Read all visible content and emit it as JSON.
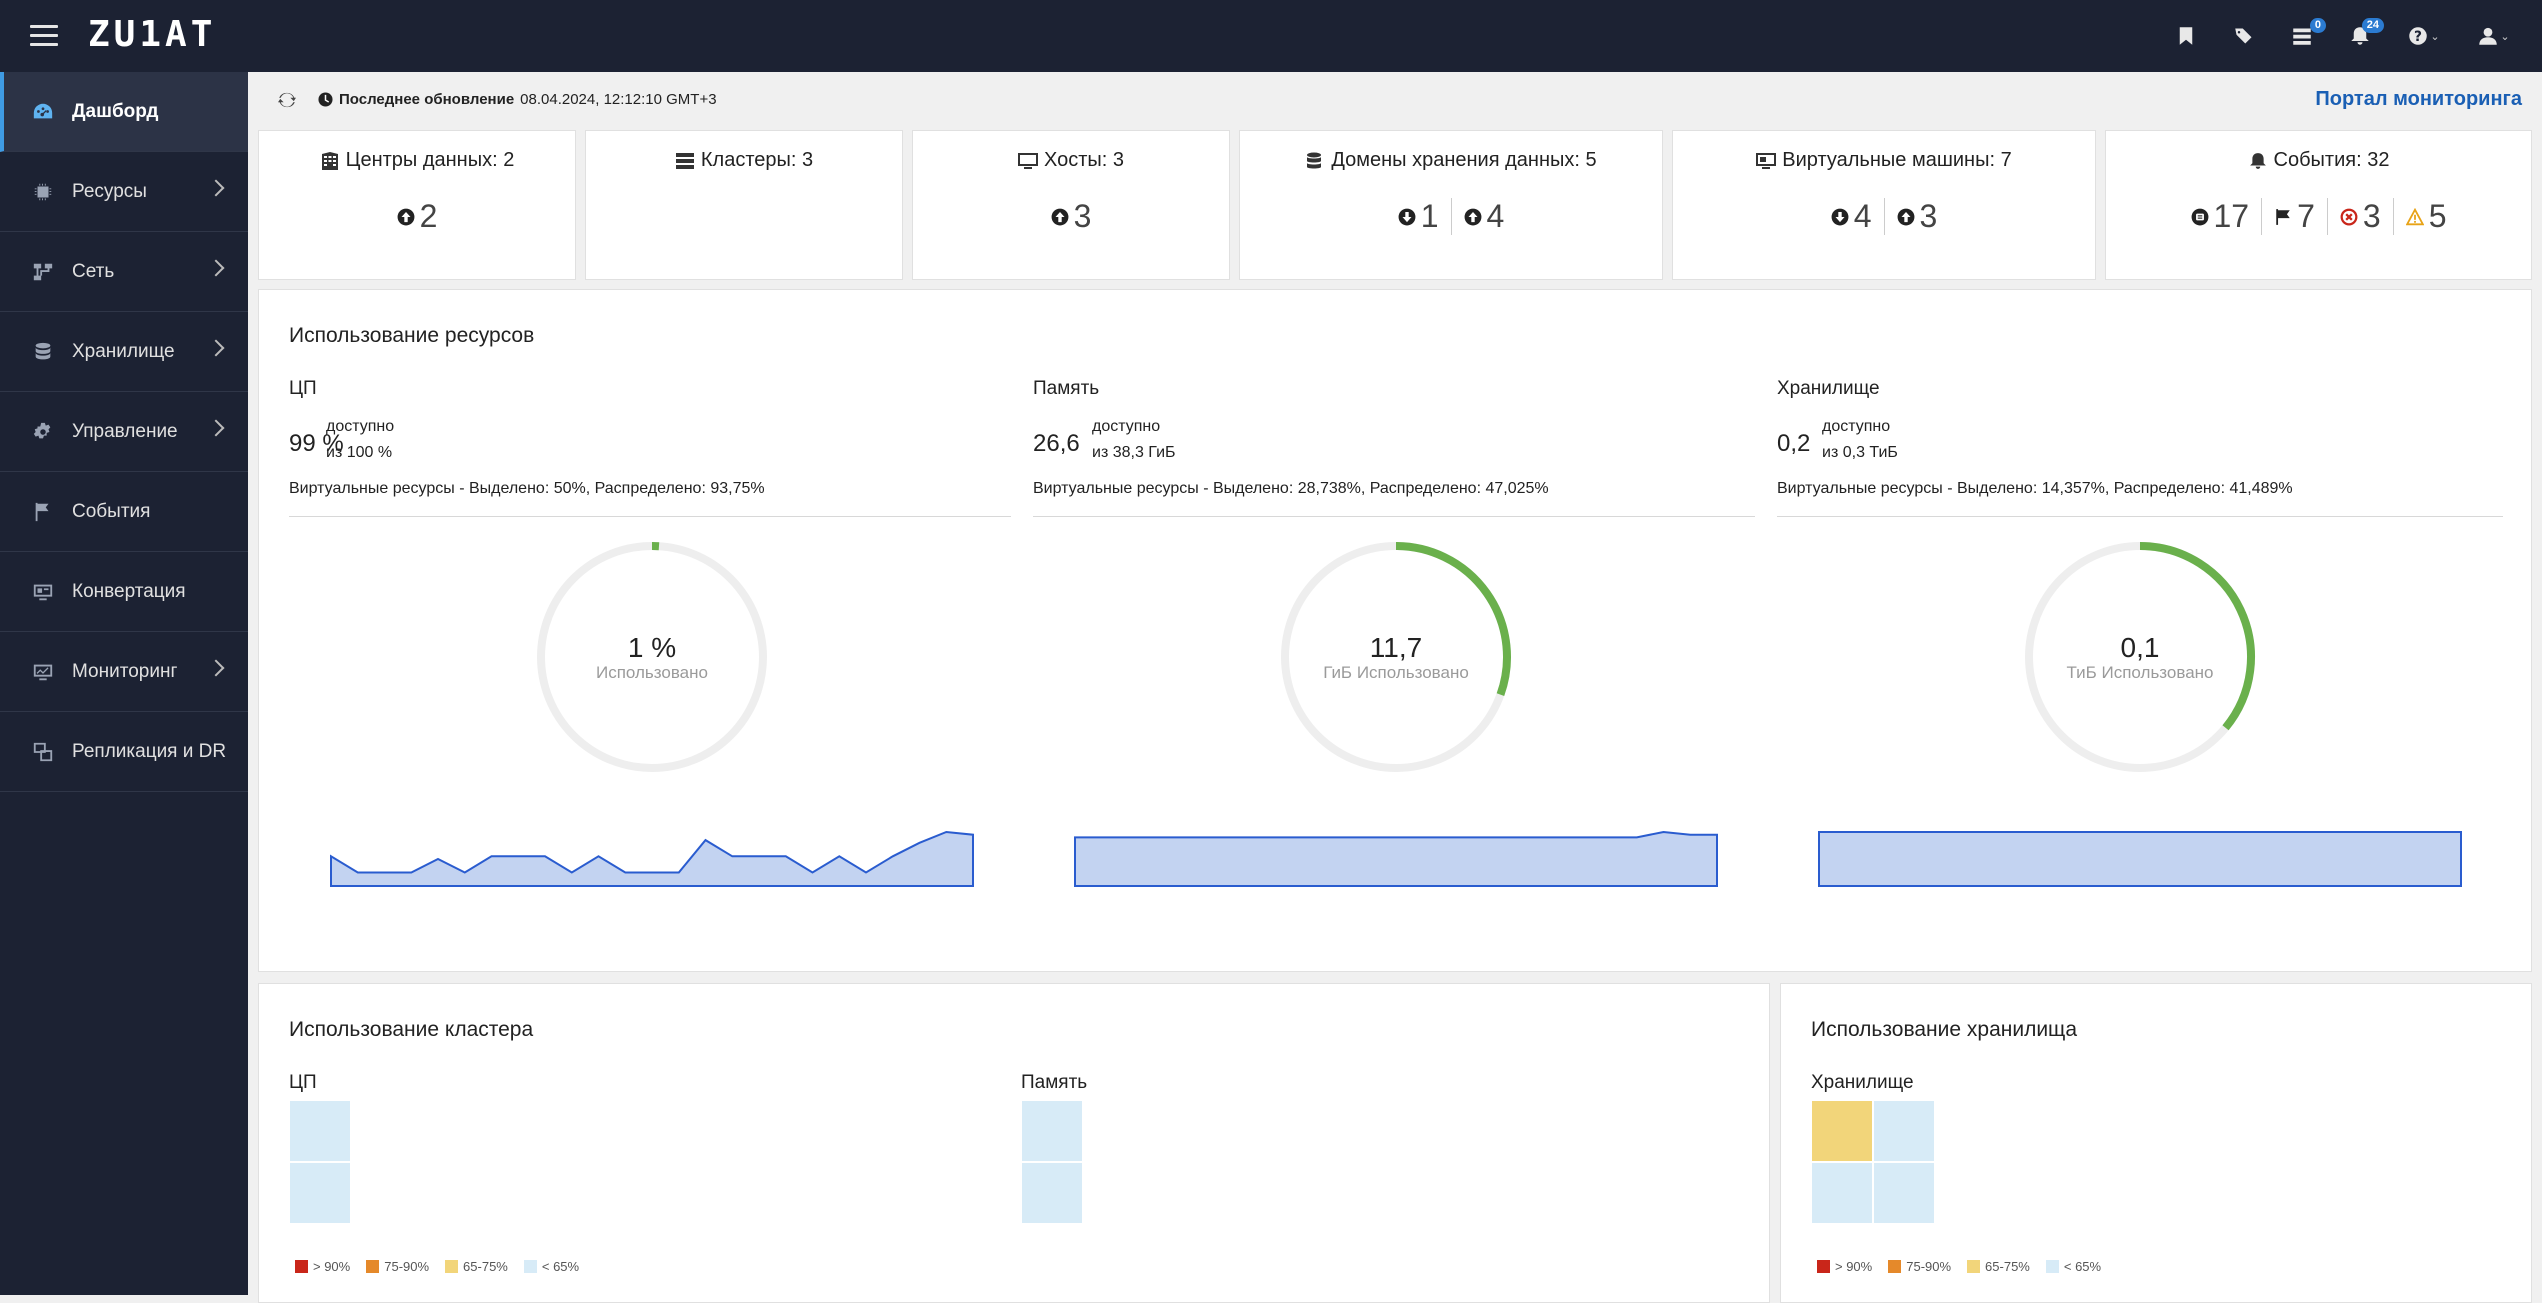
{
  "header": {
    "logo": "ZU1AT",
    "icons": [
      "bookmark-icon",
      "tags-icon",
      "tasks-icon",
      "bell-icon",
      "help-icon",
      "user-icon"
    ],
    "tasks_badge": "0",
    "notifications_badge": "24"
  },
  "sidebar": {
    "items": [
      {
        "label": "Дашборд",
        "icon": "dashboard-icon",
        "active": true
      },
      {
        "label": "Ресурсы",
        "icon": "chip-icon",
        "chevron": true
      },
      {
        "label": "Сеть",
        "icon": "network-icon",
        "chevron": true
      },
      {
        "label": "Хранилище",
        "icon": "database-icon",
        "chevron": true
      },
      {
        "label": "Управление",
        "icon": "gear-icon",
        "chevron": true
      },
      {
        "label": "События",
        "icon": "flag-icon"
      },
      {
        "label": "Конвертация",
        "icon": "monitor-icon"
      },
      {
        "label": "Мониторинг",
        "icon": "chart-icon",
        "chevron": true
      },
      {
        "label": "Репликация и DR",
        "icon": "replication-icon"
      }
    ]
  },
  "status": {
    "last_update_label": "Последнее обновление",
    "last_update_value": "08.04.2024, 12:12:10 GMT+3",
    "portal_link": "Портал мониторинга"
  },
  "cards": {
    "datacenters": {
      "title": "Центры данных: 2",
      "up": "2"
    },
    "clusters": {
      "title": "Кластеры: 3"
    },
    "hosts": {
      "title": "Хосты: 3",
      "up": "3"
    },
    "storage_domains": {
      "title": "Домены хранения данных: 5",
      "down": "1",
      "up": "4"
    },
    "vms": {
      "title": "Виртуальные машины: 7",
      "down": "4",
      "up": "3"
    },
    "events": {
      "title": "События: 32",
      "info": "17",
      "flag": "7",
      "error": "3",
      "warning": "5"
    }
  },
  "resources": {
    "title": "Использование ресурсов",
    "cpu": {
      "title": "ЦП",
      "value": "99 %",
      "avail_label": "доступно",
      "avail_of": "из 100 %",
      "virtual": "Виртуальные ресурсы - Выделено: 50%, Распределено: 93,75%",
      "donut_value": "1 %",
      "donut_label": "Использовано",
      "used_fraction": 0.01,
      "spark": [
        0.55,
        0.25,
        0.25,
        0.25,
        0.5,
        0.25,
        0.55,
        0.55,
        0.55,
        0.25,
        0.55,
        0.25,
        0.25,
        0.25,
        0.85,
        0.55,
        0.55,
        0.55,
        0.25,
        0.55,
        0.25,
        0.55,
        0.8,
        1.0,
        0.95
      ]
    },
    "memory": {
      "title": "Память",
      "value": "26,6",
      "avail_label": "доступно",
      "avail_of": "из 38,3 ГиБ",
      "virtual": "Виртуальные ресурсы - Выделено: 28,738%, Распределено: 47,025%",
      "donut_value": "11,7",
      "donut_label": "ГиБ Использовано",
      "used_fraction": 0.305,
      "spark": [
        0.9,
        0.9,
        0.9,
        0.9,
        0.9,
        0.9,
        0.9,
        0.9,
        0.9,
        0.9,
        0.9,
        0.9,
        0.9,
        0.9,
        0.9,
        0.9,
        0.9,
        0.9,
        0.9,
        0.9,
        0.9,
        0.9,
        1.0,
        0.95,
        0.95
      ]
    },
    "storage": {
      "title": "Хранилище",
      "value": "0,2",
      "avail_label": "доступно",
      "avail_of": "из 0,3 ТиБ",
      "virtual": "Виртуальные ресурсы - Выделено: 14,357%, Распределено: 41,489%",
      "donut_value": "0,1",
      "donut_label": "ТиБ Использовано",
      "used_fraction": 0.36,
      "spark": [
        1,
        1,
        1,
        1,
        1,
        1,
        1,
        1,
        1,
        1,
        1,
        1,
        1,
        1,
        1,
        1,
        1,
        1,
        1,
        1,
        1,
        1,
        1,
        1,
        1
      ]
    }
  },
  "cluster_usage": {
    "title": "Использование кластера",
    "cpu_title": "ЦП",
    "memory_title": "Память"
  },
  "storage_usage": {
    "title": "Использование хранилища",
    "storage_title": "Хранилище"
  },
  "legend": [
    ">  90%",
    "75-90%",
    "65-75%",
    "< 65%"
  ],
  "colors": {
    "accent_green": "#6ab04c",
    "sparkline_line": "#2a5ccf",
    "sparkline_fill": "#c3d3f1",
    "heat_high": "#c9261a",
    "heat_mid": "#e5892a",
    "heat_warn": "#f2d57a",
    "heat_low": "#d7ebf7"
  }
}
